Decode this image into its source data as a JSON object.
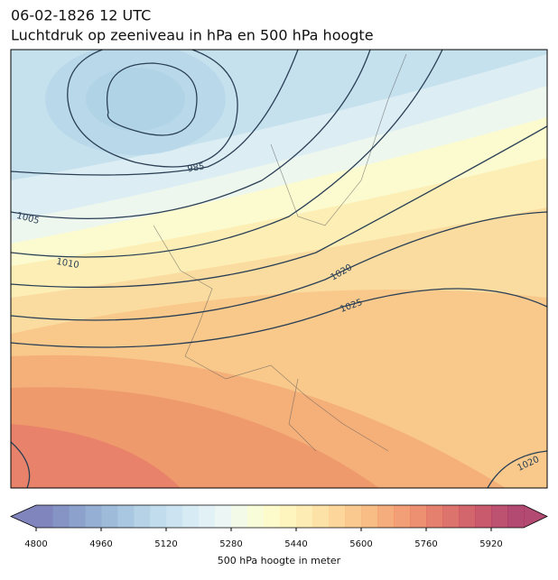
{
  "header": {
    "date": "06-02-1826 12 UTC",
    "title": "Luchtdruk op zeeniveau in hPa en 500 hPa hoogte"
  },
  "map": {
    "contour_labels": [
      985,
      1005,
      1010,
      1020,
      1025,
      1020
    ]
  },
  "colorbar": {
    "label": "500 hPa hoogte in meter",
    "lim": [
      4800,
      6000
    ],
    "ticks": [
      4800,
      4960,
      5120,
      5280,
      5440,
      5600,
      5760,
      5920
    ],
    "colors": [
      "#6b70b3",
      "#7080bb",
      "#7890c3",
      "#82a0cb",
      "#8dafd3",
      "#9abddb",
      "#a8cae2",
      "#b6d6e9",
      "#c3dfee",
      "#d0e8f2",
      "#ddeff5",
      "#e8f5f3",
      "#f1f9e4",
      "#f8fbd2",
      "#fdf9c2",
      "#fef2b3",
      "#fde9a6",
      "#fcdd97",
      "#fbcf89",
      "#f9c07c",
      "#f7b070",
      "#f49f66",
      "#f08d5e",
      "#ea7b58",
      "#e16a55",
      "#d75a53",
      "#cb4a52",
      "#bf3d54",
      "#b13357",
      "#a42a58"
    ]
  }
}
